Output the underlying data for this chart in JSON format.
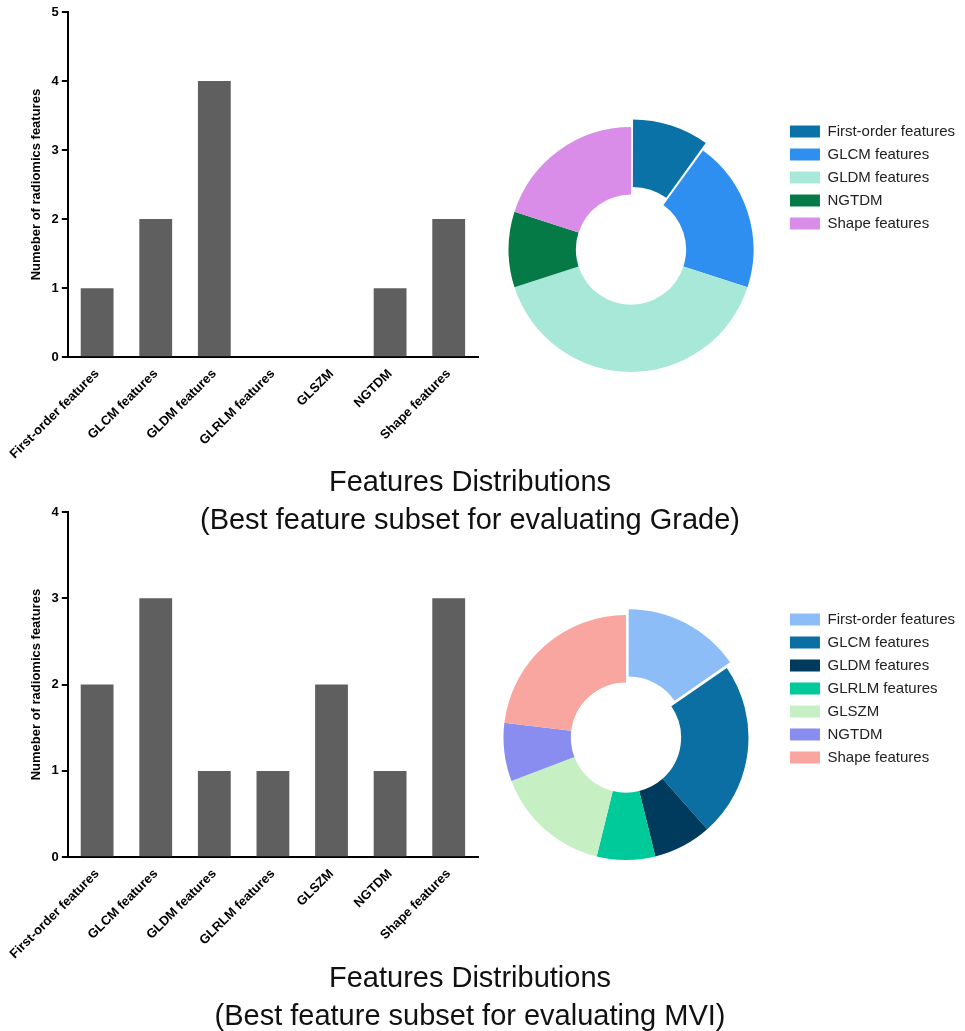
{
  "chart_data": [
    {
      "type": "bar",
      "title": "Features Distributions",
      "subtitle": "(Best feature subset for evaluating Grade)",
      "ylabel": "Numeber of radiomics features",
      "categories": [
        "First-order features",
        "GLCM features",
        "GLDM features",
        "GLRLM features",
        "GLSZM",
        "NGTDM",
        "Shape features"
      ],
      "values": [
        1,
        2,
        4,
        0,
        0,
        1,
        2
      ],
      "color": "#5f5f5f",
      "ylim": [
        0,
        5
      ],
      "yticks": [
        0,
        1,
        2,
        3,
        4,
        5
      ],
      "grid": false
    },
    {
      "type": "donut",
      "categories": [
        "First-order features",
        "GLCM features",
        "GLDM features",
        "NGTDM",
        "Shape features"
      ],
      "values": [
        10,
        20,
        40,
        10,
        20
      ],
      "colors": [
        "#0b72a8",
        "#2e8ff0",
        "#a8e8d8",
        "#067a46",
        "#d98ce8"
      ],
      "legend": "right"
    },
    {
      "type": "bar",
      "title": "Features Distributions",
      "subtitle": "(Best feature subset for evaluating MVI)",
      "ylabel": "Numeber of radiomics features",
      "categories": [
        "First-order features",
        "GLCM features",
        "GLDM features",
        "GLRLM features",
        "GLSZM",
        "NGTDM",
        "Shape features"
      ],
      "values": [
        2,
        3,
        1,
        1,
        2,
        1,
        3
      ],
      "color": "#5f5f5f",
      "ylim": [
        0,
        4
      ],
      "yticks": [
        0,
        1,
        2,
        3,
        4
      ],
      "grid": false
    },
    {
      "type": "donut",
      "categories": [
        "First-order features",
        "GLCM features",
        "GLDM features",
        "GLRLM features",
        "GLSZM",
        "NGTDM",
        "Shape features"
      ],
      "values": [
        15.4,
        23.1,
        7.7,
        7.7,
        15.4,
        7.7,
        23.1
      ],
      "colors": [
        "#8dbdf7",
        "#0b6fa4",
        "#003a5c",
        "#00c99a",
        "#c6f0c4",
        "#8a8df0",
        "#f9a5a0"
      ],
      "legend": "right"
    }
  ]
}
